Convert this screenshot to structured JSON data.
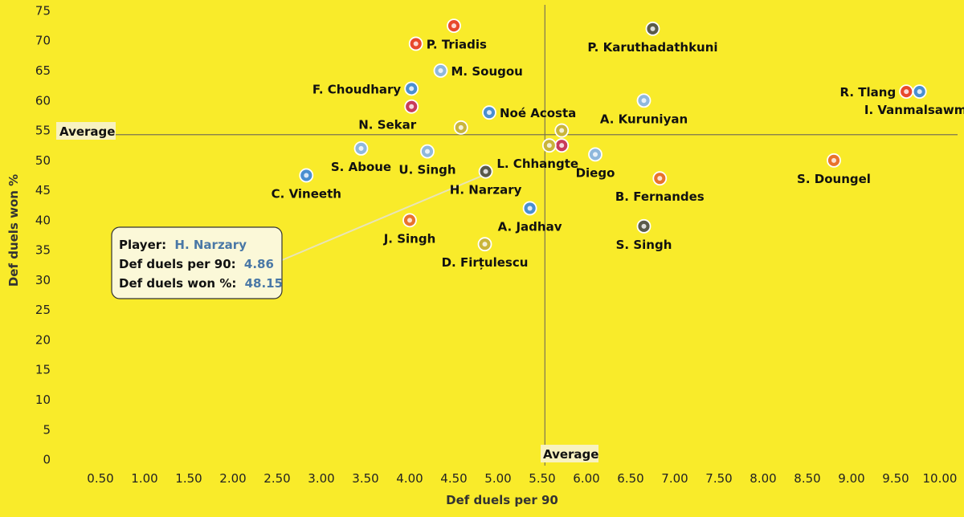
{
  "chart_data": {
    "type": "scatter",
    "xlabel": "Def duels per 90",
    "ylabel": "Def duels won %",
    "xlim": [
      0,
      10.2
    ],
    "ylim": [
      -1,
      76
    ],
    "xticks": [
      "0.50",
      "1.00",
      "1.50",
      "2.00",
      "2.50",
      "3.00",
      "3.50",
      "4.00",
      "4.50",
      "5.00",
      "5.50",
      "6.00",
      "6.50",
      "7.00",
      "7.50",
      "8.00",
      "8.50",
      "9.00",
      "9.50",
      "10.00"
    ],
    "yticks": [
      "0",
      "5",
      "10",
      "15",
      "20",
      "25",
      "30",
      "35",
      "40",
      "45",
      "50",
      "55",
      "60",
      "65",
      "70",
      "75"
    ],
    "grid": false,
    "averages": {
      "x": 5.53,
      "y": 54.3,
      "x_label": "Average",
      "y_label": "Average"
    },
    "points": [
      {
        "name": "P. Triadis",
        "x": 4.07,
        "y": 69.5,
        "color": "#e8492c",
        "label_pos": "right"
      },
      {
        "name": "",
        "x": 4.5,
        "y": 72.5,
        "color": "#e8492c",
        "label_pos": "none"
      },
      {
        "name": "M. Sougou",
        "x": 4.35,
        "y": 65.0,
        "color": "#8fb8dc",
        "label_pos": "right"
      },
      {
        "name": "P. Karuthadathkuni",
        "x": 6.75,
        "y": 72.0,
        "color": "#5a5a4a",
        "label_pos": "below"
      },
      {
        "name": "F. Choudhary",
        "x": 4.02,
        "y": 62.0,
        "color": "#4a8fd0",
        "label_pos": "left"
      },
      {
        "name": "N. Sekar",
        "x": 4.02,
        "y": 59.0,
        "color": "#c83a5a",
        "label_pos": "belowleft"
      },
      {
        "name": "Noé Acosta",
        "x": 4.9,
        "y": 58.0,
        "color": "#4a8fd0",
        "label_pos": "right"
      },
      {
        "name": "",
        "x": 4.58,
        "y": 55.5,
        "color": "#c9b53a",
        "label_pos": "none"
      },
      {
        "name": "A. Kuruniyan",
        "x": 6.65,
        "y": 60.0,
        "color": "#8fb8dc",
        "label_pos": "below"
      },
      {
        "name": "R. Tlang",
        "x": 9.62,
        "y": 61.5,
        "color": "#e8492c",
        "label_pos": "left"
      },
      {
        "name": "I. Vanmalsawma",
        "x": 9.77,
        "y": 61.5,
        "color": "#4a8fd0",
        "label_pos": "below"
      },
      {
        "name": "L. Chhangte",
        "x": 5.72,
        "y": 52.5,
        "color": "#c83a5a",
        "label_pos": "belowleft"
      },
      {
        "name": "",
        "x": 5.58,
        "y": 52.5,
        "color": "#c9b53a",
        "label_pos": "none"
      },
      {
        "name": "",
        "x": 5.72,
        "y": 55.0,
        "color": "#c9b53a",
        "label_pos": "none"
      },
      {
        "name": "S. Aboue",
        "x": 3.45,
        "y": 52.0,
        "color": "#8fb8dc",
        "label_pos": "below"
      },
      {
        "name": "U. Singh",
        "x": 4.2,
        "y": 51.5,
        "color": "#8fb8dc",
        "label_pos": "below"
      },
      {
        "name": "Diego",
        "x": 6.1,
        "y": 51.0,
        "color": "#8fb8dc",
        "label_pos": "below"
      },
      {
        "name": "S. Doungel",
        "x": 8.8,
        "y": 50.0,
        "color": "#e8732c",
        "label_pos": "below"
      },
      {
        "name": "H. Narzary",
        "x": 4.86,
        "y": 48.15,
        "color": "#5a5a4a",
        "label_pos": "below"
      },
      {
        "name": "C. Vineeth",
        "x": 2.83,
        "y": 47.5,
        "color": "#4a8fd0",
        "label_pos": "below"
      },
      {
        "name": "B. Fernandes",
        "x": 6.83,
        "y": 47.0,
        "color": "#e8732c",
        "label_pos": "below"
      },
      {
        "name": "A. Jadhav",
        "x": 5.36,
        "y": 42.0,
        "color": "#4a8fd0",
        "label_pos": "below"
      },
      {
        "name": "J. Singh",
        "x": 4.0,
        "y": 40.0,
        "color": "#e8732c",
        "label_pos": "below"
      },
      {
        "name": "S. Singh",
        "x": 6.65,
        "y": 39.0,
        "color": "#5a5a4a",
        "label_pos": "below"
      },
      {
        "name": "D. Firțulescu",
        "x": 4.85,
        "y": 36.0,
        "color": "#c9b53a",
        "label_pos": "below"
      }
    ],
    "tooltip": {
      "player_label": "Player:",
      "player_value": "H. Narzary",
      "x_label": "Def duels per 90:",
      "x_value": "4.86",
      "y_label": "Def duels won %:",
      "y_value": "48.15",
      "target": "H. Narzary"
    }
  }
}
